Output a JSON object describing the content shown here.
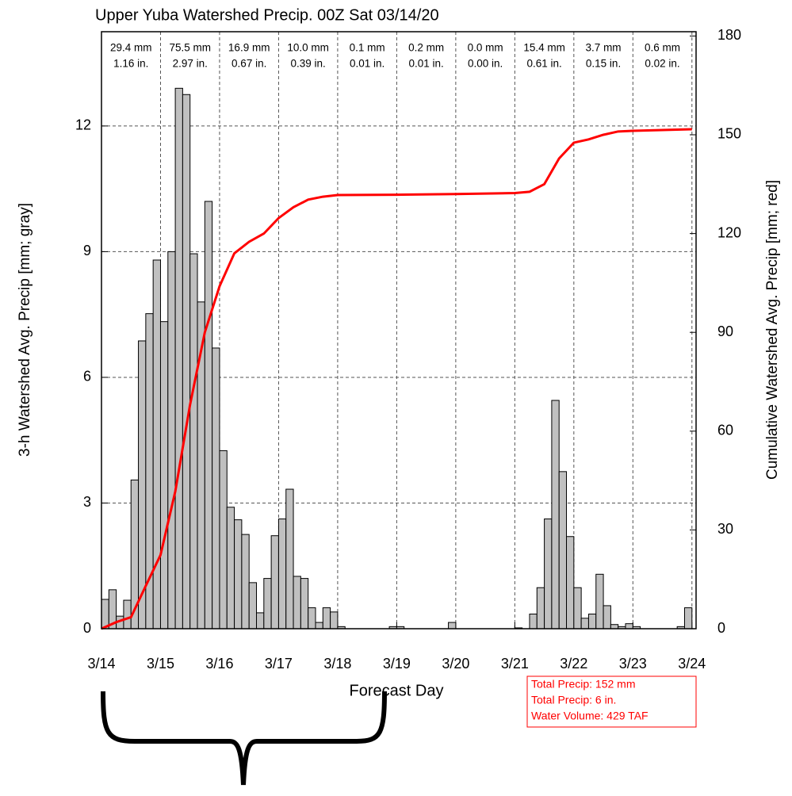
{
  "chart_data": {
    "type": "histogram",
    "title": "Upper Yuba Watershed Precip. 00Z Sat 03/14/20",
    "x_label": "Forecast Day",
    "y_label": "3-h Watershed Avg. Precip [mm; gray]",
    "y2_label": "Cumulative Watershed Avg. Precip [mm; red]",
    "xlim": [
      0,
      10.07
    ],
    "xticks": [
      {
        "value": 0,
        "label": "3/14"
      },
      {
        "value": 1,
        "label": "3/15"
      },
      {
        "value": 2,
        "label": "3/16"
      },
      {
        "value": 3,
        "label": "3/17"
      },
      {
        "value": 4,
        "label": "3/18"
      },
      {
        "value": 5,
        "label": "3/19"
      },
      {
        "value": 6,
        "label": "3/20"
      },
      {
        "value": 7,
        "label": "3/21"
      },
      {
        "value": 8,
        "label": "3/22"
      },
      {
        "value": 9,
        "label": "3/23"
      },
      {
        "value": 10,
        "label": "3/24"
      }
    ],
    "ylim": [
      0,
      14.25
    ],
    "yticks": [
      0,
      3,
      6,
      9,
      12
    ],
    "y2lim": [
      0,
      181.3
    ],
    "y2ticks": [
      0,
      30,
      60,
      90,
      120,
      150,
      180
    ],
    "grid": true,
    "bar_color": "#c0c0c0",
    "bins": [
      0,
      0.125,
      0.25,
      0.375,
      0.5,
      0.625,
      0.75,
      0.875,
      1,
      1.125,
      1.25,
      1.375,
      1.5,
      1.625,
      1.75,
      1.875,
      2,
      2.125,
      2.25,
      2.375,
      2.5,
      2.625,
      2.75,
      2.875,
      3,
      3.125,
      3.25,
      3.375,
      3.5,
      3.625,
      3.75,
      3.875,
      4,
      4.125,
      4.25,
      4.375,
      4.5,
      4.625,
      4.75,
      4.875,
      5,
      5.125,
      5.25,
      5.375,
      5.5,
      5.625,
      5.75,
      5.875,
      6,
      6.125,
      6.25,
      6.375,
      6.5,
      6.625,
      6.75,
      6.875,
      7,
      7.125,
      7.25,
      7.375,
      7.5,
      7.625,
      7.75,
      7.875,
      8,
      8.125,
      8.25,
      8.375,
      8.5,
      8.625,
      8.75,
      8.875,
      9,
      9.125,
      9.25,
      9.375,
      9.5,
      9.625,
      9.75,
      9.875,
      10
    ],
    "counts": [
      0.7,
      0.93,
      0.3,
      0.68,
      3.55,
      6.87,
      7.52,
      8.8,
      7.33,
      9.0,
      12.9,
      12.75,
      8.95,
      7.8,
      10.2,
      6.7,
      4.25,
      2.9,
      2.6,
      2.25,
      1.1,
      0.38,
      1.2,
      2.22,
      2.62,
      3.33,
      1.25,
      1.2,
      0.5,
      0.15,
      0.5,
      0.4,
      0.05,
      0,
      0,
      0,
      0,
      0,
      0,
      0.05,
      0.05,
      0,
      0,
      0,
      0,
      0,
      0,
      0.15,
      0,
      0,
      0,
      0,
      0,
      0,
      0,
      0,
      0.02,
      0,
      0.35,
      0.98,
      2.62,
      5.45,
      3.75,
      2.2,
      0.98,
      0.25,
      0.35,
      1.3,
      0.55,
      0.1,
      0.05,
      0.12,
      0.05,
      0,
      0,
      0,
      0,
      0,
      0.05,
      0.5
    ],
    "line": {
      "color": "#ff0000",
      "axis": "y2",
      "x": [
        0,
        0.25,
        0.5,
        0.75,
        1,
        1.25,
        1.5,
        1.75,
        2,
        2.25,
        2.5,
        2.75,
        3,
        3.25,
        3.5,
        3.75,
        4,
        5,
        6,
        7,
        7.25,
        7.5,
        7.75,
        8,
        8.25,
        8.5,
        8.75,
        9,
        10
      ],
      "values": [
        0,
        2,
        3.5,
        13,
        22.4,
        41.7,
        68,
        90,
        104,
        114,
        117.5,
        120,
        124.7,
        128,
        130.3,
        131.2,
        131.7,
        131.8,
        132,
        132.3,
        132.7,
        135,
        142.8,
        147.6,
        148.6,
        150,
        151,
        151.2,
        151.7
      ]
    },
    "daily_totals": [
      {
        "mm": "29.4 mm",
        "in": "1.16 in."
      },
      {
        "mm": "75.5 mm",
        "in": "2.97 in."
      },
      {
        "mm": "16.9 mm",
        "in": "0.67 in."
      },
      {
        "mm": "10.0 mm",
        "in": "0.39 in."
      },
      {
        "mm": "0.1 mm",
        "in": "0.01 in."
      },
      {
        "mm": "0.2 mm",
        "in": "0.01 in."
      },
      {
        "mm": "0.0 mm",
        "in": "0.00 in."
      },
      {
        "mm": "15.4 mm",
        "in": "0.61 in."
      },
      {
        "mm": "3.7 mm",
        "in": "0.15 in."
      },
      {
        "mm": "0.6 mm",
        "in": "0.02 in."
      }
    ],
    "summary": [
      "Total Precip: 152 mm",
      "Total Precip: 6 in.",
      "Water Volume: 429 TAF"
    ],
    "summary_color": "#ff0000"
  }
}
